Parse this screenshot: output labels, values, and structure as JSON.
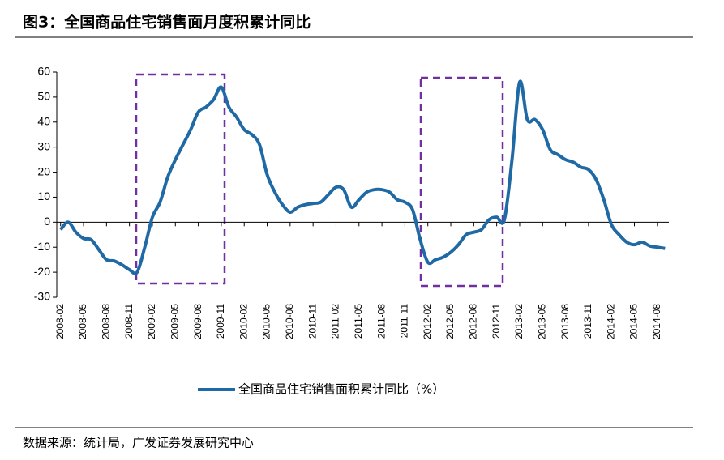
{
  "chart_data": {
    "type": "line",
    "title": "图3：全国商品住宅销售面月度积累计同比",
    "source": "数据来源：统计局，广发证券发展研究中心",
    "categories": [
      "2008-02",
      null,
      null,
      "2008-05",
      null,
      null,
      "2008-08",
      null,
      null,
      "2008-11",
      null,
      null,
      "2009-02",
      null,
      null,
      "2009-05",
      null,
      null,
      "2009-08",
      null,
      null,
      "2009-11",
      null,
      null,
      "2010-02",
      null,
      null,
      "2010-05",
      null,
      null,
      "2010-08",
      null,
      null,
      "2010-11",
      null,
      null,
      "2011-02",
      null,
      null,
      "2011-05",
      null,
      null,
      "2011-08",
      null,
      null,
      "2011-11",
      null,
      null,
      "2012-02",
      null,
      null,
      "2012-05",
      null,
      null,
      "2012-08",
      null,
      null,
      "2012-11",
      null,
      null,
      "2013-02",
      null,
      null,
      "2013-05",
      null,
      null,
      "2013-08",
      null,
      null,
      "2013-11",
      null,
      null,
      "2014-02",
      null,
      null,
      "2014-05",
      null,
      null,
      "2014-08",
      null
    ],
    "series": [
      {
        "name": "全国商品住宅销售面积累计同比（%）",
        "color": "#1f6aa5",
        "values": [
          -3,
          0,
          -4,
          -6.5,
          -7,
          -11,
          -15,
          -15.5,
          -17,
          -19,
          -20,
          -10,
          2,
          8,
          18,
          25,
          31,
          37,
          44,
          46,
          49,
          54,
          46,
          42,
          37,
          35,
          31,
          19,
          12,
          7,
          4,
          6,
          7,
          7.5,
          8,
          11,
          14,
          13,
          6,
          9,
          12,
          13,
          13,
          12,
          9,
          8,
          5,
          -7,
          -16,
          -15,
          -14,
          -12,
          -9,
          -5,
          -4,
          -3,
          1,
          2,
          1,
          25,
          56,
          41,
          41,
          37,
          29,
          27,
          25,
          24,
          22,
          21,
          17,
          9,
          -1,
          -5,
          -8,
          -9,
          -8,
          -9.5,
          -10,
          -10.5
        ]
      }
    ],
    "ylim": [
      -30,
      60
    ],
    "yticks": [
      -30,
      -20,
      -10,
      0,
      10,
      20,
      30,
      40,
      50,
      60
    ]
  }
}
